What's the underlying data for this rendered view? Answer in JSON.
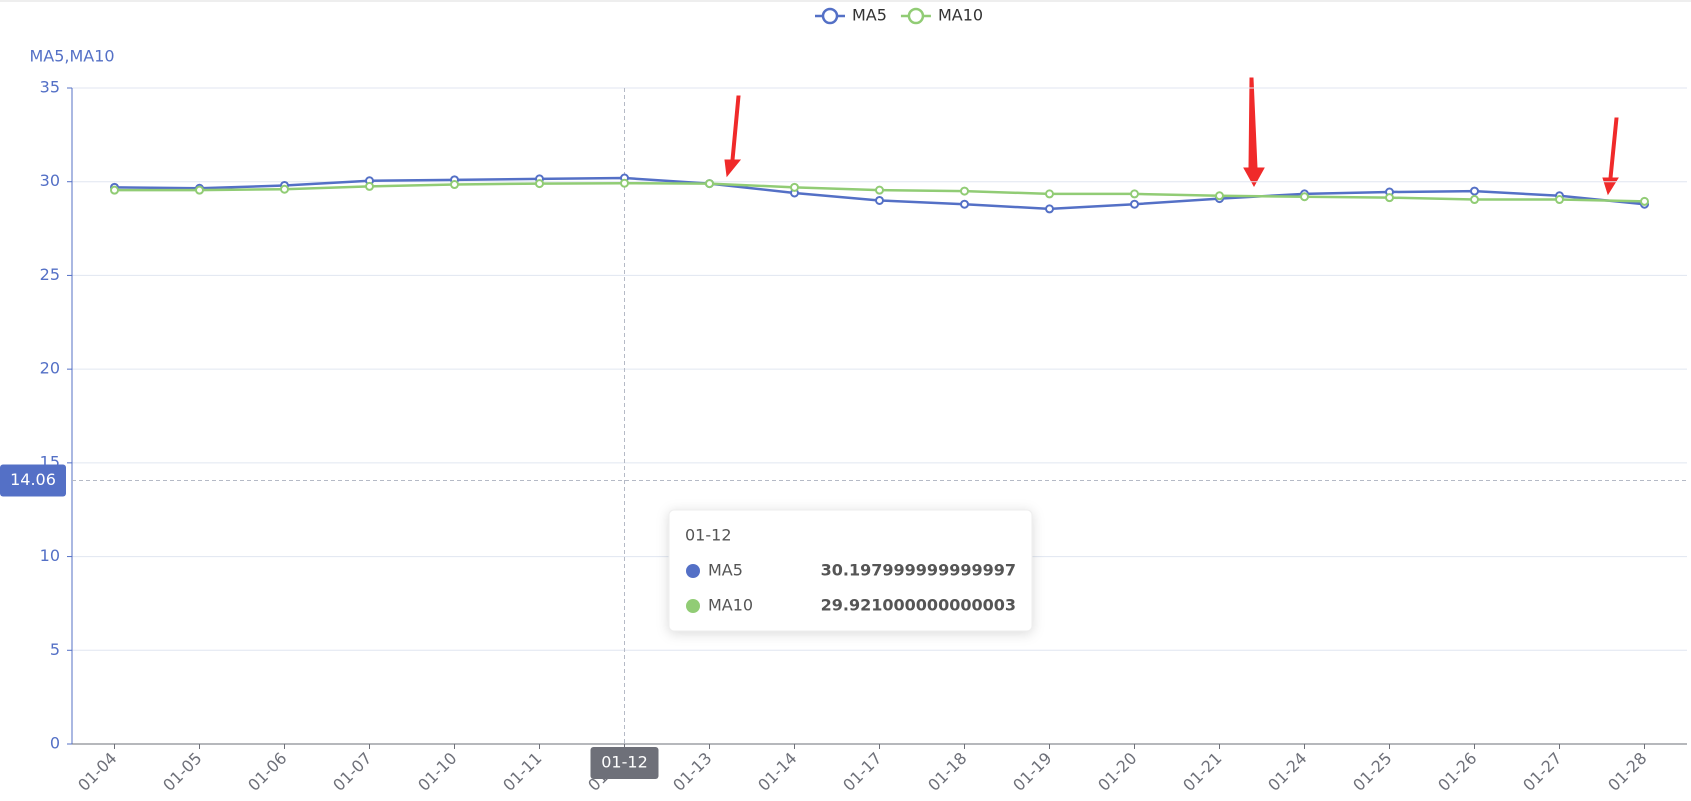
{
  "chart_data": {
    "type": "line",
    "y_axis_name": "MA5,MA10",
    "categories": [
      "01-04",
      "01-05",
      "01-06",
      "01-07",
      "01-10",
      "01-11",
      "01-12",
      "01-13",
      "01-14",
      "01-17",
      "01-18",
      "01-19",
      "01-20",
      "01-21",
      "01-24",
      "01-25",
      "01-26",
      "01-27",
      "01-28"
    ],
    "series": [
      {
        "name": "MA5",
        "color": "#5470c6",
        "values": [
          29.7,
          29.65,
          29.8,
          30.05,
          30.1,
          30.15,
          30.198,
          29.9,
          29.4,
          29.0,
          28.8,
          28.55,
          28.8,
          29.1,
          29.35,
          29.45,
          29.5,
          29.25,
          28.8
        ]
      },
      {
        "name": "MA10",
        "color": "#91cc75",
        "values": [
          29.55,
          29.55,
          29.6,
          29.75,
          29.85,
          29.9,
          29.921,
          29.9,
          29.7,
          29.55,
          29.5,
          29.35,
          29.35,
          29.25,
          29.2,
          29.15,
          29.05,
          29.05,
          28.95
        ]
      }
    ],
    "ylim": [
      0,
      35
    ],
    "yticks": [
      0,
      5,
      10,
      15,
      20,
      25,
      30,
      35
    ],
    "grid": true,
    "legend_position": "top",
    "axis_pointer": {
      "y": 14.06,
      "x": "01-12"
    },
    "tooltip": {
      "title": "01-12",
      "rows": [
        {
          "name": "MA5",
          "value": "30.197999999999997"
        },
        {
          "name": "MA10",
          "value": "29.921000000000003"
        }
      ]
    }
  }
}
